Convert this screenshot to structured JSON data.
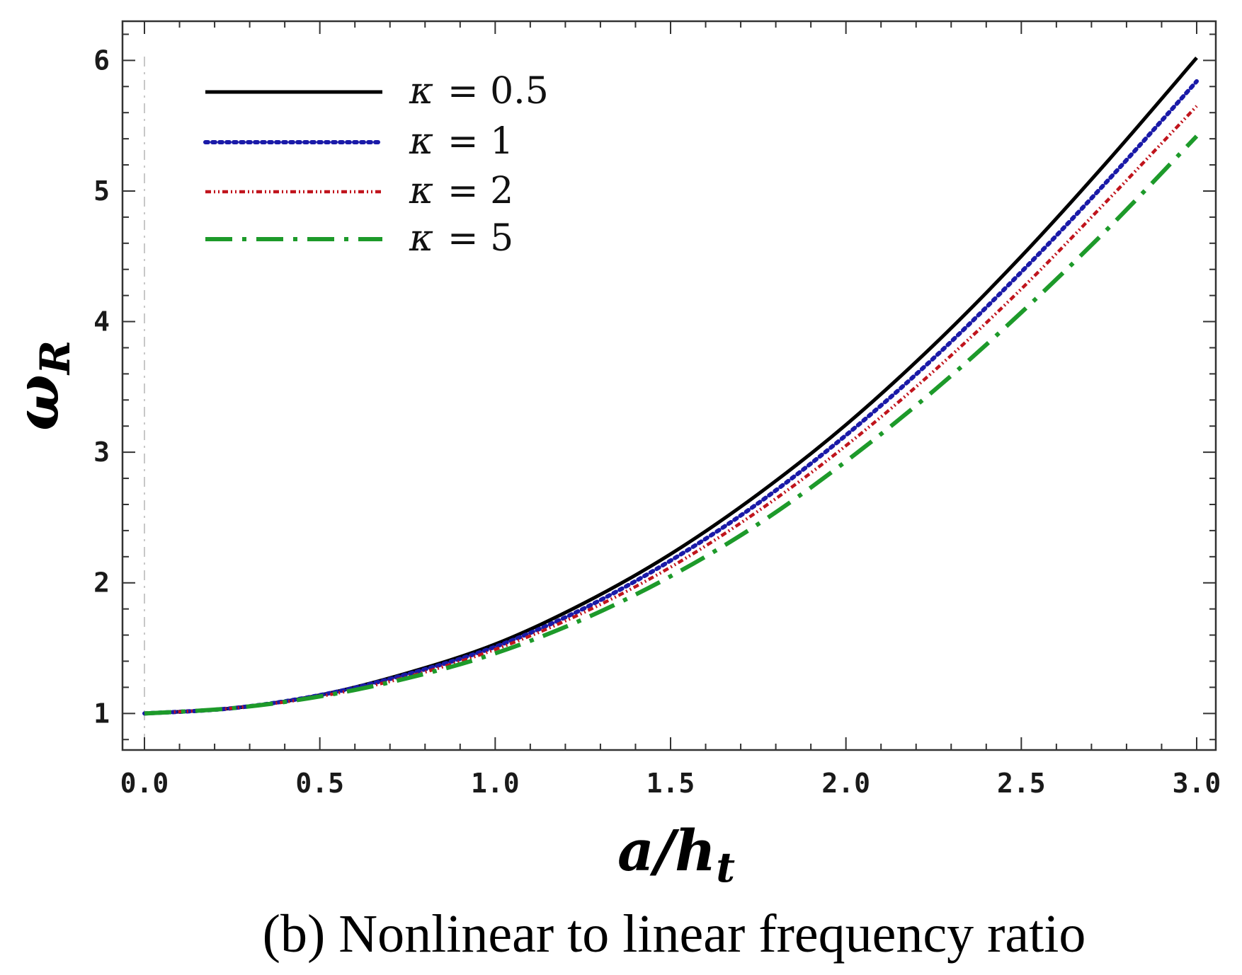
{
  "caption": "(b) Nonlinear to linear frequency ratio",
  "chart_data": {
    "type": "line",
    "title": "",
    "xlabel": "a/h_t",
    "ylabel": "ω_R",
    "xlabel_parts": {
      "main": "a/h",
      "sub": "t"
    },
    "ylabel_parts": {
      "main": "ω",
      "sub": "R"
    },
    "xlim": [
      0.0,
      3.0
    ],
    "ylim": [
      0.72,
      6.3
    ],
    "xticks": [
      "0.0",
      "0.5",
      "1.0",
      "1.5",
      "2.0",
      "2.5",
      "3.0"
    ],
    "yticks": [
      "1",
      "2",
      "3",
      "4",
      "5",
      "6"
    ],
    "legend_position": "top-left",
    "x": [
      0.0,
      0.25,
      0.5,
      0.75,
      1.0,
      1.25,
      1.5,
      1.75,
      2.0,
      2.25,
      2.5,
      2.75,
      3.0
    ],
    "series": [
      {
        "name": "κ = 0.5",
        "label_left": "κ",
        "label_right": "= 0.5",
        "color": "#000000",
        "style": "solid",
        "values": [
          1.0,
          1.04,
          1.14,
          1.31,
          1.53,
          1.84,
          2.22,
          2.68,
          3.21,
          3.82,
          4.5,
          5.24,
          6.02
        ]
      },
      {
        "name": "κ = 1",
        "label_left": "κ",
        "label_right": "= 1",
        "color": "#1a1aa8",
        "style": "dotted",
        "values": [
          1.0,
          1.04,
          1.14,
          1.3,
          1.51,
          1.8,
          2.17,
          2.61,
          3.13,
          3.72,
          4.38,
          5.09,
          5.84
        ]
      },
      {
        "name": "κ = 2",
        "label_left": "κ",
        "label_right": "= 2",
        "color": "#c0141c",
        "style": "dash-dot-dot",
        "values": [
          1.0,
          1.04,
          1.13,
          1.28,
          1.49,
          1.77,
          2.12,
          2.55,
          3.05,
          3.62,
          4.25,
          4.94,
          5.65
        ]
      },
      {
        "name": "κ = 5",
        "label_left": "κ",
        "label_right": "= 5",
        "color": "#1d9a2a",
        "style": "long-dash-dot",
        "values": [
          1.0,
          1.04,
          1.13,
          1.27,
          1.46,
          1.72,
          2.05,
          2.45,
          2.93,
          3.47,
          4.07,
          4.72,
          5.42
        ]
      }
    ]
  }
}
